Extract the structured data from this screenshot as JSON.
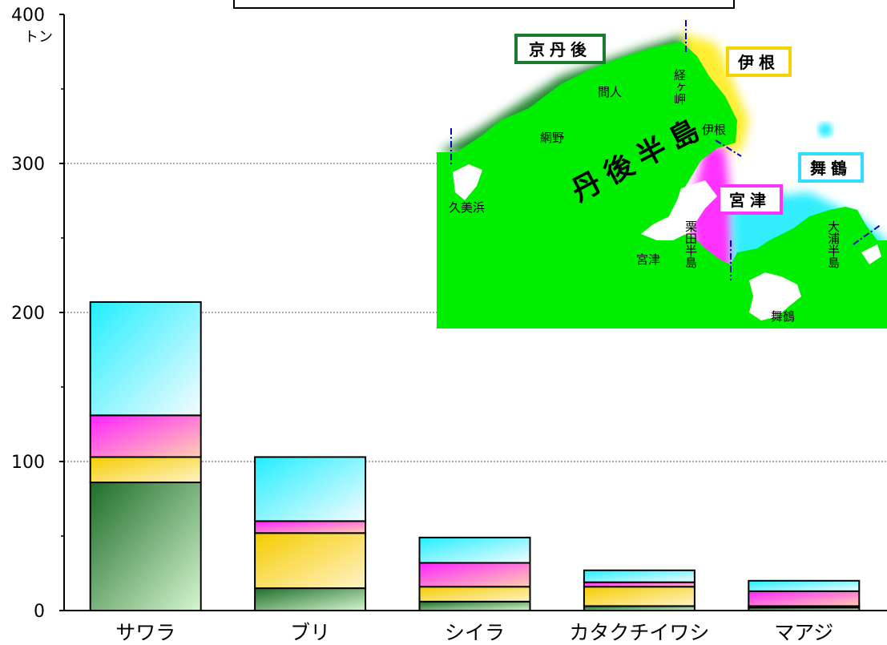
{
  "chart_data": {
    "type": "bar",
    "stacked": true,
    "title": "",
    "unit": "トン",
    "ylim": [
      0,
      400
    ],
    "yticks": [
      0,
      100,
      200,
      300,
      400
    ],
    "grid": "dotted at 100, 200, 300",
    "categories": [
      "サワラ",
      "ブリ",
      "シイラ",
      "カタクチイワシ",
      "マアジ"
    ],
    "series": [
      {
        "name": "京丹後",
        "color": "#1e7a2e",
        "values": [
          86,
          15,
          6,
          3,
          2
        ]
      },
      {
        "name": "伊根",
        "color": "#f5d200",
        "values": [
          17,
          37,
          10,
          13,
          1
        ]
      },
      {
        "name": "宮津",
        "color": "#ff33ff",
        "values": [
          28,
          8,
          16,
          3,
          10
        ]
      },
      {
        "name": "舞鶴",
        "color": "#33eeff",
        "values": [
          76,
          43,
          17,
          8,
          7
        ]
      }
    ]
  },
  "map": {
    "regions": [
      {
        "label": "京丹後",
        "border": "#1e7a2e"
      },
      {
        "label": "伊根",
        "border": "#f5d200"
      },
      {
        "label": "宮津",
        "border": "#ff33ff"
      },
      {
        "label": "舞鶴",
        "border": "#33ddff"
      }
    ],
    "peninsula": "丹後半島",
    "places": [
      "間人",
      "経ヶ岬",
      "網野",
      "伊根",
      "久美浜",
      "栗田半島",
      "宮津",
      "大浦半島",
      "舞鶴"
    ]
  }
}
